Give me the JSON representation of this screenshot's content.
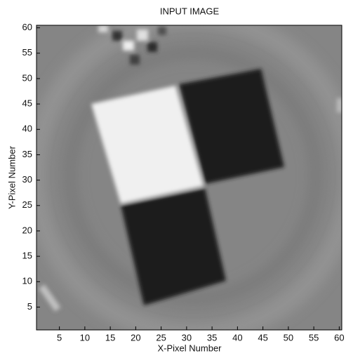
{
  "chart_data": {
    "type": "image",
    "title": "INPUT IMAGE",
    "x_label": "X-Pixel Number",
    "y_label": "Y-Pixel Number",
    "xlim": [
      0.5,
      60.5
    ],
    "ylim": [
      0.5,
      60.5
    ],
    "xticks": [
      5,
      10,
      15,
      20,
      25,
      30,
      35,
      40,
      45,
      50,
      55,
      60
    ],
    "yticks": [
      5,
      10,
      15,
      20,
      25,
      30,
      35,
      40,
      45,
      50,
      55,
      60
    ]
  }
}
